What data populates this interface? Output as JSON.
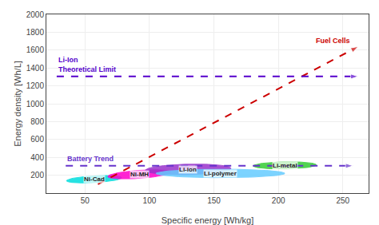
{
  "chart_data": {
    "type": "ellipse",
    "xlabel": "Specific energy [Wh/kg]",
    "ylabel": "Energy density [Wh/L]",
    "xlim": [
      20,
      270
    ],
    "ylim": [
      0,
      2000
    ],
    "xticks": [
      50,
      100,
      150,
      200,
      250
    ],
    "yticks": [
      200,
      400,
      600,
      800,
      1000,
      1200,
      1400,
      1600,
      1800,
      2000
    ],
    "grid": true,
    "series": [
      {
        "name": "Ni-Cad",
        "color": "#00dddd",
        "x": 57,
        "y": 155,
        "width": 38,
        "height": 85,
        "angle": -15
      },
      {
        "name": "Ni-MH",
        "color": "#ff00cc",
        "x": 92,
        "y": 210,
        "width": 42,
        "height": 105,
        "angle": -15
      },
      {
        "name": "Li-ion",
        "color": "#9933cc",
        "x": 130,
        "y": 265,
        "width": 65,
        "height": 120,
        "angle": -8
      },
      {
        "name": "Li-polymer",
        "color": "#66ccff",
        "x": 155,
        "y": 220,
        "width": 100,
        "height": 95,
        "angle": 5
      },
      {
        "name": "Li-metal",
        "color": "#33cc33",
        "x": 205,
        "y": 310,
        "width": 48,
        "height": 80,
        "angle": -8
      }
    ],
    "lines": [
      {
        "label": [
          "Battery Trend"
        ],
        "color": "#6633cc",
        "line_style": "dashed",
        "x": [
          35,
          258
        ],
        "y": [
          305,
          305
        ]
      },
      {
        "label": [
          "Fuel Cells"
        ],
        "color": "#cc0000",
        "line_style": "dashed",
        "x": [
          60,
          262
        ],
        "y": [
          100,
          1640
        ]
      },
      {
        "label": [
          "Li-Ion",
          "Theoretical Limit"
        ],
        "color": "#5500cc",
        "line_style": "dashed",
        "x": [
          28,
          262
        ],
        "y": [
          1305,
          1305
        ]
      }
    ]
  }
}
